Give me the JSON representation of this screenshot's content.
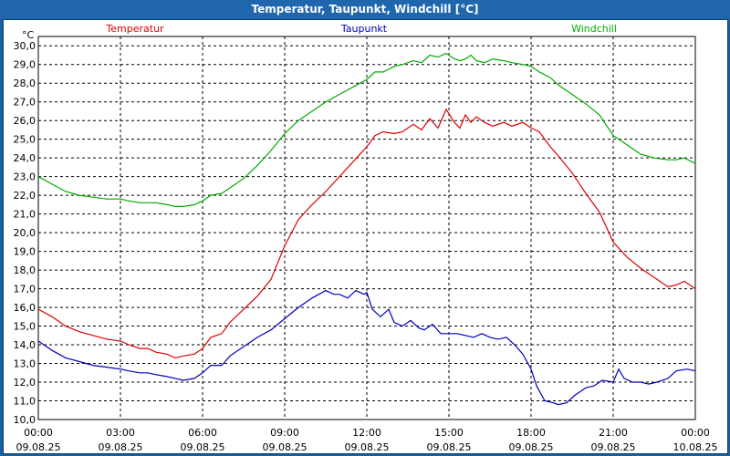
{
  "window": {
    "title": "Temperatur, Taupunkt, Windchill [°C]"
  },
  "chart_data": {
    "type": "line",
    "title": "Temperatur, Taupunkt, Windchill [°C]",
    "unit": "°C",
    "ylim": [
      10.0,
      30.5
    ],
    "yticks": [
      "10,0",
      "11,0",
      "12,0",
      "13,0",
      "14,0",
      "15,0",
      "16,0",
      "17,0",
      "18,0",
      "19,0",
      "20,0",
      "21,0",
      "22,0",
      "23,0",
      "24,0",
      "25,0",
      "26,0",
      "27,0",
      "28,0",
      "29,0",
      "30,0"
    ],
    "xlim_hours": [
      0,
      24
    ],
    "xticks": [
      {
        "time": "00:00",
        "date": "09.08.25"
      },
      {
        "time": "03:00",
        "date": "09.08.25"
      },
      {
        "time": "06:00",
        "date": "09.08.25"
      },
      {
        "time": "09:00",
        "date": "09.08.25"
      },
      {
        "time": "12:00",
        "date": "09.08.25"
      },
      {
        "time": "15:00",
        "date": "09.08.25"
      },
      {
        "time": "18:00",
        "date": "09.08.25"
      },
      {
        "time": "21:00",
        "date": "09.08.25"
      },
      {
        "time": "00:00",
        "date": "10.08.25"
      }
    ],
    "grid": true,
    "series": [
      {
        "name": "Temperatur",
        "color": "#dd0000",
        "points": [
          [
            0,
            15.9
          ],
          [
            0.5,
            15.5
          ],
          [
            1,
            15.0
          ],
          [
            1.5,
            14.7
          ],
          [
            2,
            14.5
          ],
          [
            2.5,
            14.3
          ],
          [
            3,
            14.2
          ],
          [
            3.3,
            14.0
          ],
          [
            3.7,
            13.8
          ],
          [
            4,
            13.8
          ],
          [
            4.3,
            13.6
          ],
          [
            4.7,
            13.5
          ],
          [
            5,
            13.3
          ],
          [
            5.3,
            13.4
          ],
          [
            5.7,
            13.5
          ],
          [
            6,
            13.8
          ],
          [
            6.3,
            14.4
          ],
          [
            6.7,
            14.6
          ],
          [
            7,
            15.2
          ],
          [
            7.5,
            15.9
          ],
          [
            8,
            16.6
          ],
          [
            8.5,
            17.5
          ],
          [
            9,
            19.3
          ],
          [
            9.5,
            20.7
          ],
          [
            10,
            21.5
          ],
          [
            10.5,
            22.2
          ],
          [
            11,
            23.0
          ],
          [
            11.5,
            23.8
          ],
          [
            12,
            24.6
          ],
          [
            12.3,
            25.2
          ],
          [
            12.6,
            25.4
          ],
          [
            13,
            25.3
          ],
          [
            13.3,
            25.4
          ],
          [
            13.7,
            25.8
          ],
          [
            14,
            25.5
          ],
          [
            14.3,
            26.1
          ],
          [
            14.6,
            25.6
          ],
          [
            14.9,
            26.6
          ],
          [
            15.2,
            25.9
          ],
          [
            15.4,
            25.6
          ],
          [
            15.6,
            26.3
          ],
          [
            15.8,
            25.9
          ],
          [
            16,
            26.2
          ],
          [
            16.3,
            25.9
          ],
          [
            16.6,
            25.7
          ],
          [
            17,
            25.9
          ],
          [
            17.3,
            25.7
          ],
          [
            17.7,
            25.9
          ],
          [
            18,
            25.6
          ],
          [
            18.3,
            25.4
          ],
          [
            18.7,
            24.6
          ],
          [
            19,
            24.1
          ],
          [
            19.5,
            23.2
          ],
          [
            20,
            22.1
          ],
          [
            20.5,
            21.1
          ],
          [
            21,
            19.5
          ],
          [
            21.5,
            18.7
          ],
          [
            22,
            18.1
          ],
          [
            22.5,
            17.6
          ],
          [
            23,
            17.1
          ],
          [
            23.3,
            17.2
          ],
          [
            23.6,
            17.4
          ],
          [
            24,
            17.0
          ]
        ]
      },
      {
        "name": "Taupunkt",
        "color": "#0000bb",
        "points": [
          [
            0,
            14.2
          ],
          [
            0.5,
            13.7
          ],
          [
            1,
            13.3
          ],
          [
            1.5,
            13.1
          ],
          [
            2,
            12.9
          ],
          [
            2.5,
            12.8
          ],
          [
            3,
            12.7
          ],
          [
            3.3,
            12.6
          ],
          [
            3.7,
            12.5
          ],
          [
            4,
            12.5
          ],
          [
            4.3,
            12.4
          ],
          [
            4.7,
            12.3
          ],
          [
            5,
            12.2
          ],
          [
            5.3,
            12.1
          ],
          [
            5.7,
            12.2
          ],
          [
            6,
            12.5
          ],
          [
            6.3,
            12.9
          ],
          [
            6.7,
            12.9
          ],
          [
            7,
            13.4
          ],
          [
            7.5,
            13.9
          ],
          [
            8,
            14.4
          ],
          [
            8.5,
            14.8
          ],
          [
            9,
            15.4
          ],
          [
            9.5,
            16.0
          ],
          [
            10,
            16.5
          ],
          [
            10.5,
            16.9
          ],
          [
            10.8,
            16.7
          ],
          [
            11,
            16.7
          ],
          [
            11.3,
            16.5
          ],
          [
            11.6,
            16.9
          ],
          [
            11.9,
            16.7
          ],
          [
            12,
            16.8
          ],
          [
            12.2,
            15.9
          ],
          [
            12.5,
            15.5
          ],
          [
            12.8,
            15.9
          ],
          [
            13,
            15.2
          ],
          [
            13.3,
            15.0
          ],
          [
            13.6,
            15.3
          ],
          [
            13.9,
            14.9
          ],
          [
            14.1,
            14.8
          ],
          [
            14.4,
            15.1
          ],
          [
            14.7,
            14.6
          ],
          [
            15,
            14.6
          ],
          [
            15.3,
            14.6
          ],
          [
            15.6,
            14.5
          ],
          [
            15.9,
            14.4
          ],
          [
            16.2,
            14.6
          ],
          [
            16.5,
            14.4
          ],
          [
            16.8,
            14.3
          ],
          [
            17.1,
            14.4
          ],
          [
            17.4,
            14.0
          ],
          [
            17.7,
            13.5
          ],
          [
            18,
            12.7
          ],
          [
            18.2,
            11.8
          ],
          [
            18.5,
            11.0
          ],
          [
            18.8,
            10.9
          ],
          [
            19,
            10.8
          ],
          [
            19.3,
            10.9
          ],
          [
            19.6,
            11.3
          ],
          [
            20,
            11.7
          ],
          [
            20.3,
            11.8
          ],
          [
            20.6,
            12.1
          ],
          [
            21,
            12.0
          ],
          [
            21.2,
            12.7
          ],
          [
            21.4,
            12.2
          ],
          [
            21.7,
            12.0
          ],
          [
            22,
            12.0
          ],
          [
            22.3,
            11.9
          ],
          [
            22.6,
            12.0
          ],
          [
            23,
            12.2
          ],
          [
            23.3,
            12.6
          ],
          [
            23.7,
            12.7
          ],
          [
            24,
            12.6
          ]
        ]
      },
      {
        "name": "Windchill",
        "color": "#00aa00",
        "points": [
          [
            0,
            23.0
          ],
          [
            0.5,
            22.6
          ],
          [
            1,
            22.2
          ],
          [
            1.5,
            22.0
          ],
          [
            2,
            21.9
          ],
          [
            2.5,
            21.8
          ],
          [
            3,
            21.8
          ],
          [
            3.3,
            21.7
          ],
          [
            3.7,
            21.6
          ],
          [
            4,
            21.6
          ],
          [
            4.3,
            21.6
          ],
          [
            4.7,
            21.5
          ],
          [
            5,
            21.4
          ],
          [
            5.3,
            21.4
          ],
          [
            5.7,
            21.5
          ],
          [
            6,
            21.7
          ],
          [
            6.3,
            22.0
          ],
          [
            6.7,
            22.1
          ],
          [
            7,
            22.4
          ],
          [
            7.5,
            22.9
          ],
          [
            8,
            23.6
          ],
          [
            8.5,
            24.4
          ],
          [
            9,
            25.3
          ],
          [
            9.5,
            26.0
          ],
          [
            10,
            26.5
          ],
          [
            10.5,
            27.0
          ],
          [
            11,
            27.4
          ],
          [
            11.5,
            27.8
          ],
          [
            12,
            28.2
          ],
          [
            12.3,
            28.6
          ],
          [
            12.6,
            28.6
          ],
          [
            13,
            28.9
          ],
          [
            13.3,
            29.0
          ],
          [
            13.7,
            29.2
          ],
          [
            14,
            29.1
          ],
          [
            14.3,
            29.5
          ],
          [
            14.6,
            29.4
          ],
          [
            14.9,
            29.6
          ],
          [
            15.2,
            29.3
          ],
          [
            15.4,
            29.2
          ],
          [
            15.6,
            29.3
          ],
          [
            15.8,
            29.5
          ],
          [
            16,
            29.2
          ],
          [
            16.3,
            29.1
          ],
          [
            16.6,
            29.3
          ],
          [
            17,
            29.2
          ],
          [
            17.3,
            29.1
          ],
          [
            17.7,
            29.0
          ],
          [
            18,
            28.9
          ],
          [
            18.3,
            28.6
          ],
          [
            18.7,
            28.3
          ],
          [
            19,
            27.9
          ],
          [
            19.5,
            27.4
          ],
          [
            20,
            26.9
          ],
          [
            20.5,
            26.3
          ],
          [
            21,
            25.2
          ],
          [
            21.5,
            24.7
          ],
          [
            22,
            24.2
          ],
          [
            22.5,
            24.0
          ],
          [
            23,
            23.9
          ],
          [
            23.3,
            23.9
          ],
          [
            23.6,
            24.0
          ],
          [
            24,
            23.7
          ]
        ]
      }
    ]
  }
}
